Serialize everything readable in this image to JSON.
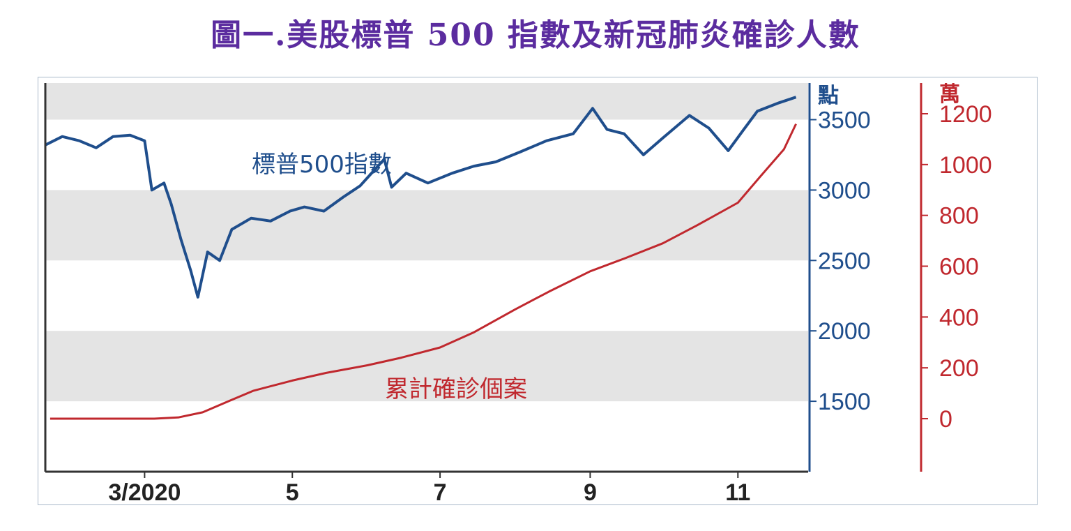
{
  "title": "圖一.美股標普 500 指數及新冠肺炎確診人數",
  "colors": {
    "title": "#5b2c9f",
    "sp500": "#1f4e8c",
    "cases": "#c0282e",
    "band": "#e4e4e4",
    "axis": "#333333"
  },
  "chart_data": {
    "type": "line",
    "title": "圖一.美股標普 500 指數及新冠肺炎確診人數",
    "x_axis": {
      "tick_labels": [
        "3/2020",
        "5",
        "7",
        "9",
        "11"
      ],
      "range": [
        "2020-01-20",
        "2020-11-30"
      ]
    },
    "y_axis_left": {
      "unit": "點",
      "ticks": [
        1500,
        2000,
        2500,
        3000,
        3500
      ],
      "range": [
        1000,
        3760
      ],
      "bands": [
        [
          1500,
          2000
        ],
        [
          2500,
          3000
        ],
        [
          3500,
          3760
        ]
      ]
    },
    "y_axis_right": {
      "unit": "萬",
      "ticks": [
        0,
        200,
        400,
        600,
        800,
        1000,
        1200
      ],
      "range": [
        0,
        1200
      ]
    },
    "series": [
      {
        "name": "標普500指數",
        "axis": "left",
        "points": [
          [
            "2020-01-20",
            3320
          ],
          [
            "2020-01-27",
            3380
          ],
          [
            "2020-02-03",
            3350
          ],
          [
            "2020-02-10",
            3300
          ],
          [
            "2020-02-17",
            3380
          ],
          [
            "2020-02-24",
            3390
          ],
          [
            "2020-03-01",
            3350
          ],
          [
            "2020-03-04",
            3000
          ],
          [
            "2020-03-09",
            3050
          ],
          [
            "2020-03-12",
            2900
          ],
          [
            "2020-03-16",
            2650
          ],
          [
            "2020-03-20",
            2430
          ],
          [
            "2020-03-23",
            2240
          ],
          [
            "2020-03-27",
            2560
          ],
          [
            "2020-04-01",
            2500
          ],
          [
            "2020-04-06",
            2720
          ],
          [
            "2020-04-14",
            2800
          ],
          [
            "2020-04-22",
            2780
          ],
          [
            "2020-04-30",
            2850
          ],
          [
            "2020-05-06",
            2880
          ],
          [
            "2020-05-14",
            2850
          ],
          [
            "2020-05-22",
            2950
          ],
          [
            "2020-05-29",
            3030
          ],
          [
            "2020-06-08",
            3220
          ],
          [
            "2020-06-11",
            3020
          ],
          [
            "2020-06-17",
            3120
          ],
          [
            "2020-06-26",
            3050
          ],
          [
            "2020-07-06",
            3120
          ],
          [
            "2020-07-15",
            3170
          ],
          [
            "2020-07-24",
            3200
          ],
          [
            "2020-08-03",
            3270
          ],
          [
            "2020-08-14",
            3350
          ],
          [
            "2020-08-25",
            3400
          ],
          [
            "2020-09-02",
            3580
          ],
          [
            "2020-09-08",
            3430
          ],
          [
            "2020-09-15",
            3400
          ],
          [
            "2020-09-23",
            3250
          ],
          [
            "2020-10-01",
            3370
          ],
          [
            "2020-10-12",
            3530
          ],
          [
            "2020-10-20",
            3440
          ],
          [
            "2020-10-28",
            3280
          ],
          [
            "2020-11-03",
            3420
          ],
          [
            "2020-11-09",
            3560
          ],
          [
            "2020-11-18",
            3620
          ],
          [
            "2020-11-25",
            3660
          ]
        ]
      },
      {
        "name": "累計確診個案",
        "axis": "right",
        "points": [
          [
            "2020-01-22",
            0
          ],
          [
            "2020-02-15",
            0
          ],
          [
            "2020-03-05",
            0
          ],
          [
            "2020-03-15",
            5
          ],
          [
            "2020-03-25",
            25
          ],
          [
            "2020-04-05",
            70
          ],
          [
            "2020-04-15",
            110
          ],
          [
            "2020-05-01",
            150
          ],
          [
            "2020-05-15",
            180
          ],
          [
            "2020-06-01",
            210
          ],
          [
            "2020-06-15",
            240
          ],
          [
            "2020-07-01",
            280
          ],
          [
            "2020-07-15",
            340
          ],
          [
            "2020-08-01",
            430
          ],
          [
            "2020-08-15",
            500
          ],
          [
            "2020-09-01",
            580
          ],
          [
            "2020-09-15",
            630
          ],
          [
            "2020-10-01",
            690
          ],
          [
            "2020-10-15",
            760
          ],
          [
            "2020-11-01",
            850
          ],
          [
            "2020-11-10",
            950
          ],
          [
            "2020-11-20",
            1060
          ],
          [
            "2020-11-25",
            1160
          ]
        ]
      }
    ],
    "annotations": [
      "標普500指數",
      "累計確診個案"
    ]
  }
}
